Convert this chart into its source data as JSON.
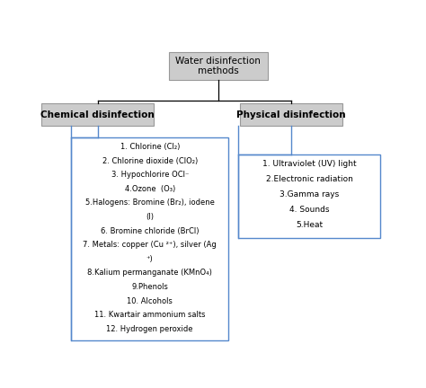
{
  "title": "Water disinfection\nmethods",
  "left_header": "Chemical disinfection",
  "right_header": "Physical disinfection",
  "chemical_items": [
    "1. Chlorine (Cl₂)",
    "2. Chlorine dioxide (ClO₂)",
    "3. Hypochlorire OCl⁻",
    "4.Ozone  (O₃)",
    "5.Halogens: Bromine (Br₂), iodene\n(I)",
    "6. Bromine chloride (BrCl)",
    "7. Metals: copper (Cu ²⁺), silver (Ag\n⁺)",
    "8.Kalium permanganate (KMnO₄)",
    "9.Phenols",
    "10. Alcohols",
    "11. Kwartair ammonium salts",
    "12. Hydrogen peroxide"
  ],
  "physical_items": [
    "1. Ultraviolet (UV) light",
    "2.Electronic radiation",
    "3.Gamma rays",
    "4. Sounds",
    "5.Heat"
  ],
  "bg_color": "#ffffff",
  "box_fill": "#cccccc",
  "border_color": "#5588cc",
  "line_color": "#000000",
  "text_color": "#000000"
}
